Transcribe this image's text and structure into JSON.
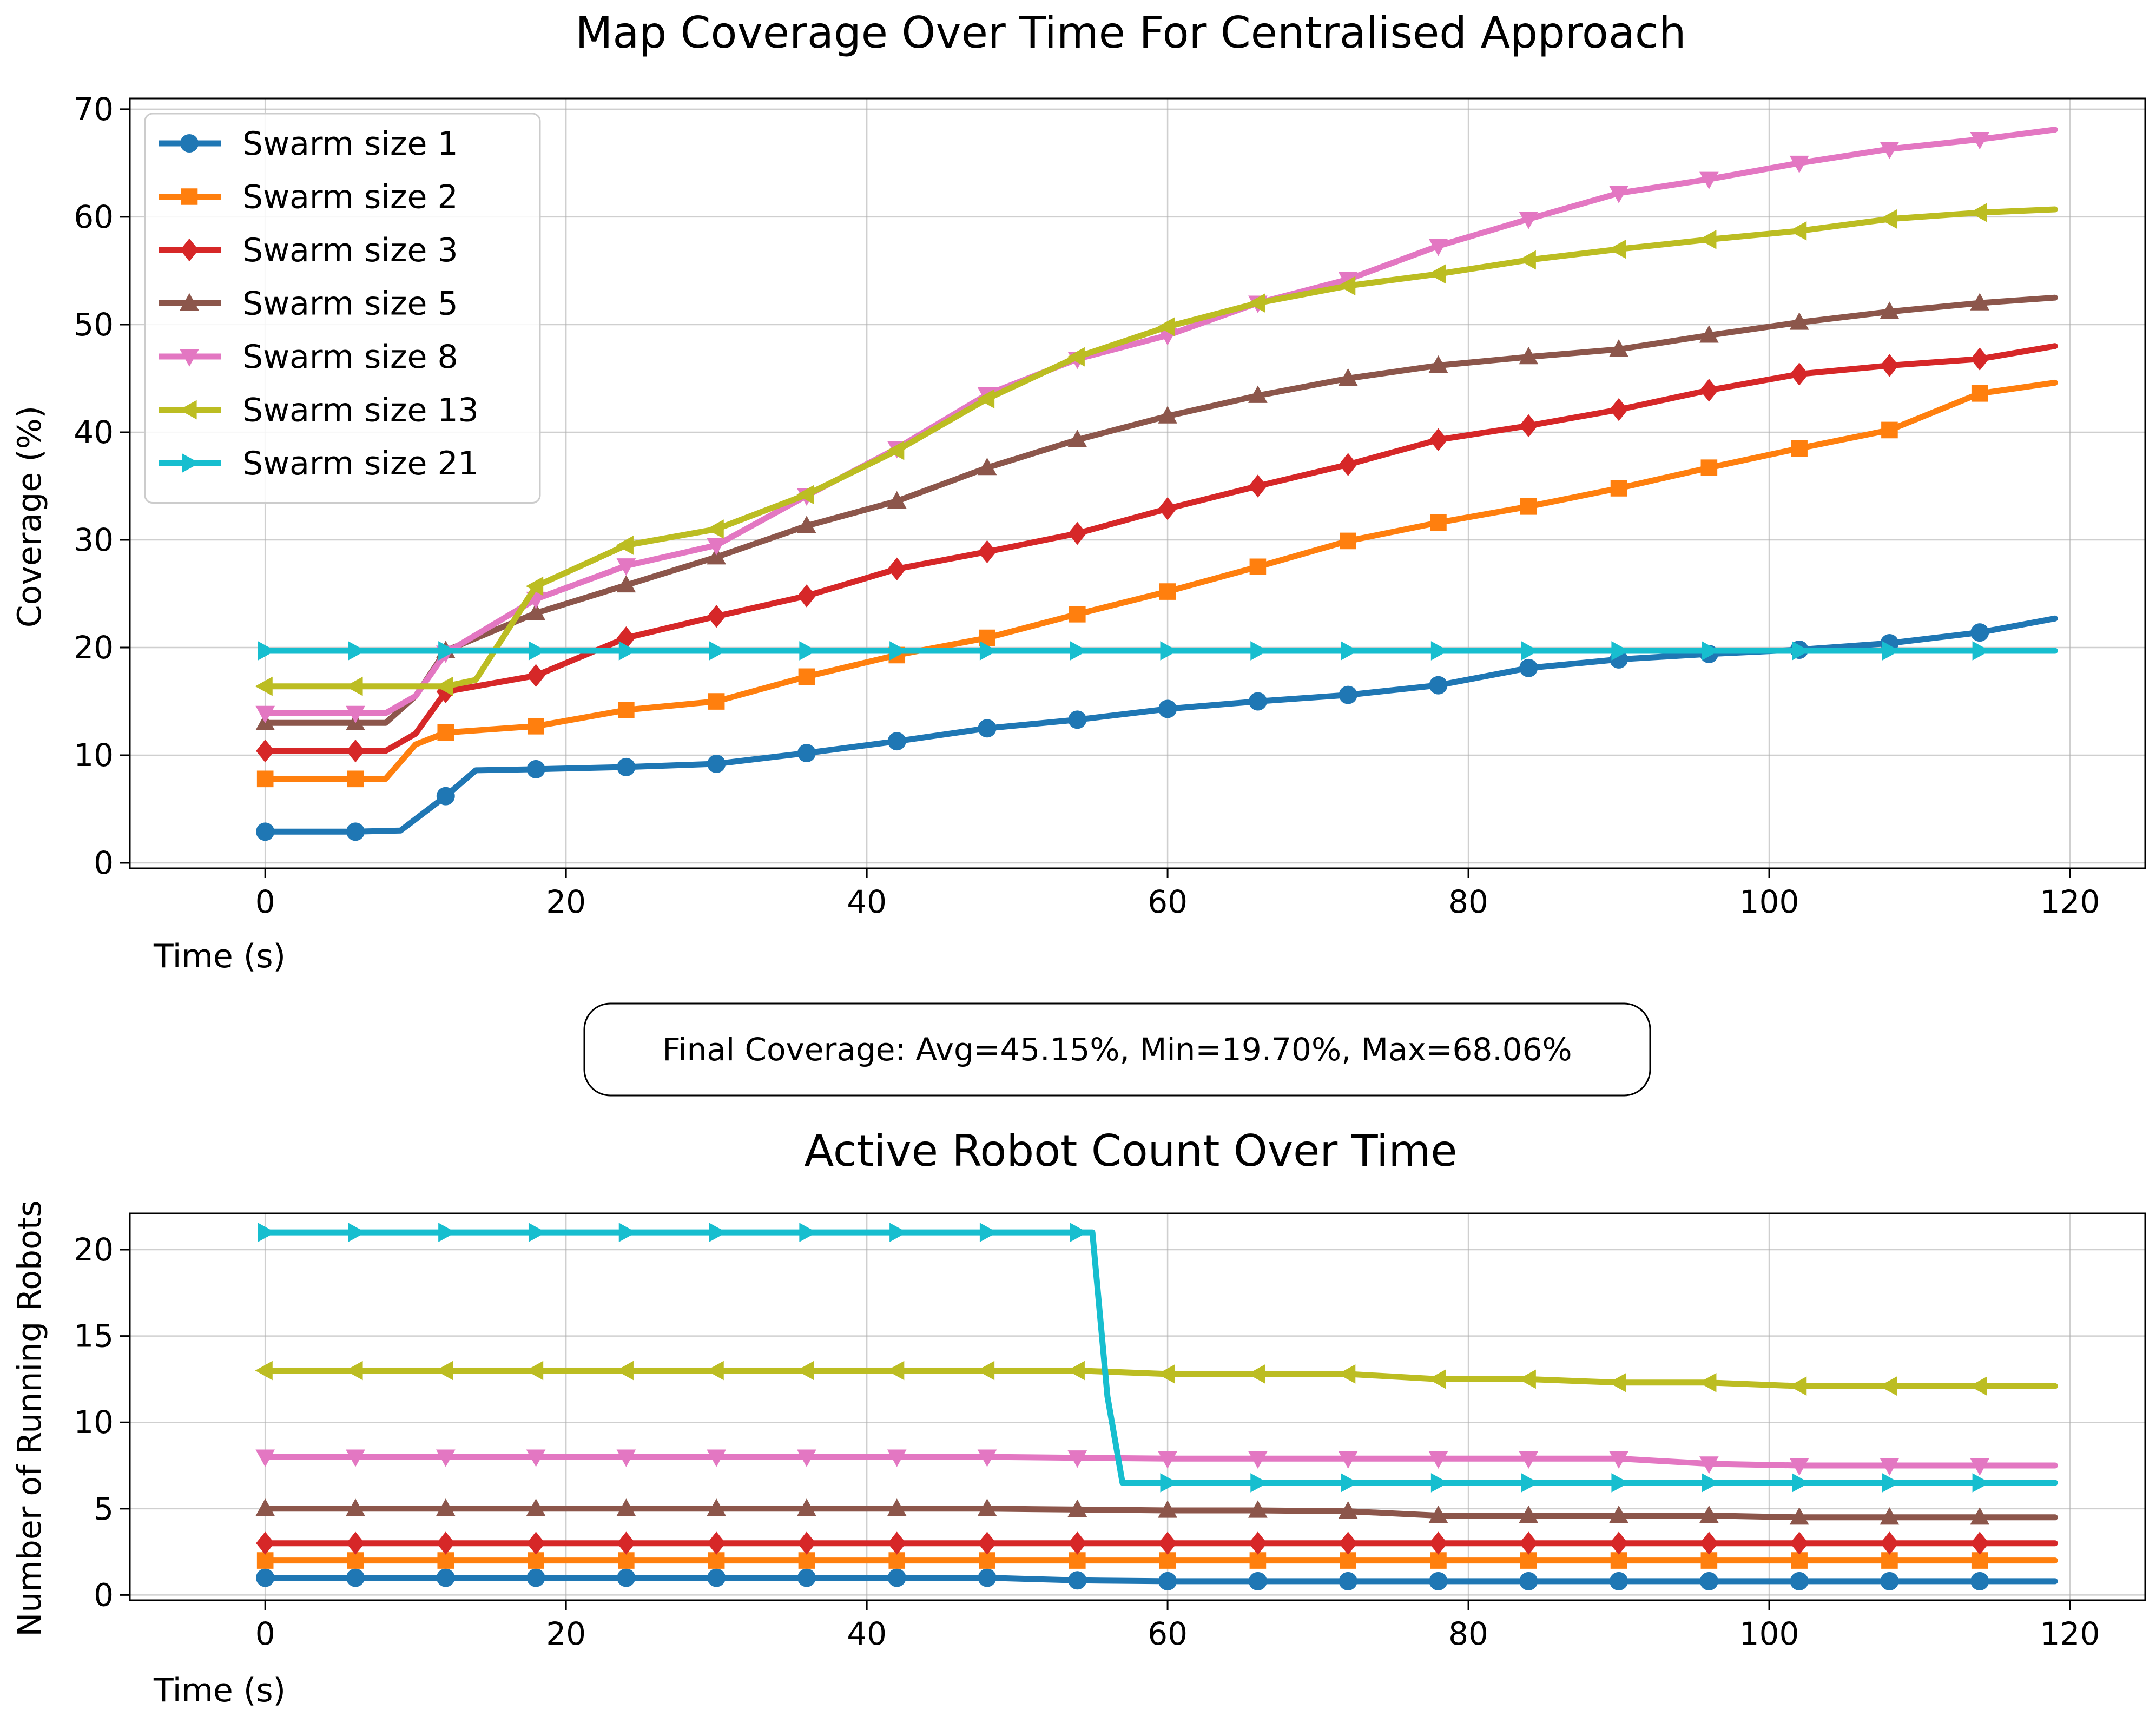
{
  "colors": {
    "Swarm size 1": "#1f77b4",
    "Swarm size 2": "#ff7f0e",
    "Swarm size 3": "#d62728",
    "Swarm size 5": "#8c564b",
    "Swarm size 8": "#e377c2",
    "Swarm size 13": "#bcbd22",
    "Swarm size 21": "#17becf"
  },
  "summary_box": "Final Coverage: Avg=45.15%, Min=19.70%, Max=68.06%",
  "chart_data": [
    {
      "type": "line",
      "title": "Map Coverage Over Time For Centralised Approach",
      "xlabel": "Time (s)",
      "ylabel": "Coverage (%)",
      "xlim": [
        -9,
        125
      ],
      "ylim": [
        -0.5,
        71
      ],
      "xticks": [
        "0",
        "20",
        "40",
        "60",
        "80",
        "100",
        "120"
      ],
      "yticks": [
        "0",
        "10",
        "20",
        "30",
        "40",
        "50",
        "60",
        "70"
      ],
      "grid": true,
      "legend": "upper left",
      "series": [
        {
          "name": "Swarm size 1",
          "marker": "circle",
          "x": [
            0,
            6,
            9,
            12,
            14,
            18,
            24,
            30,
            36,
            42,
            48,
            54,
            60,
            66,
            72,
            78,
            84,
            90,
            96,
            102,
            108,
            114,
            119
          ],
          "y": [
            2.9,
            2.9,
            3.0,
            6.2,
            8.6,
            8.7,
            8.9,
            9.2,
            10.2,
            11.3,
            12.5,
            13.3,
            14.3,
            15.0,
            15.6,
            16.5,
            18.1,
            18.9,
            19.4,
            19.8,
            20.4,
            21.4,
            22.7
          ]
        },
        {
          "name": "Swarm size 2",
          "marker": "square",
          "x": [
            0,
            6,
            8,
            10,
            12,
            18,
            24,
            30,
            36,
            42,
            48,
            54,
            60,
            66,
            72,
            78,
            84,
            90,
            96,
            102,
            108,
            114,
            119
          ],
          "y": [
            7.8,
            7.8,
            7.8,
            11.0,
            12.1,
            12.7,
            14.2,
            15.0,
            17.3,
            19.3,
            20.9,
            23.1,
            25.2,
            27.5,
            29.9,
            31.6,
            33.1,
            34.8,
            36.7,
            38.5,
            40.2,
            43.6,
            44.6
          ]
        },
        {
          "name": "Swarm size 3",
          "marker": "diamond",
          "x": [
            0,
            6,
            8,
            10,
            12,
            18,
            24,
            30,
            36,
            42,
            48,
            54,
            60,
            66,
            72,
            78,
            84,
            90,
            96,
            102,
            108,
            114,
            119
          ],
          "y": [
            10.4,
            10.4,
            10.4,
            12.0,
            15.9,
            17.4,
            20.9,
            22.9,
            24.8,
            27.3,
            28.9,
            30.6,
            32.9,
            35.0,
            37.0,
            39.3,
            40.6,
            42.1,
            43.9,
            45.4,
            46.2,
            46.8,
            48.0
          ]
        },
        {
          "name": "Swarm size 5",
          "marker": "triangle-up",
          "x": [
            0,
            6,
            8,
            10,
            12,
            18,
            24,
            30,
            36,
            42,
            48,
            54,
            60,
            66,
            72,
            78,
            84,
            90,
            96,
            102,
            108,
            114,
            119
          ],
          "y": [
            13.0,
            13.0,
            13.0,
            15.5,
            19.7,
            23.2,
            25.8,
            28.4,
            31.3,
            33.6,
            36.7,
            39.3,
            41.5,
            43.4,
            45.0,
            46.2,
            47.0,
            47.7,
            49.0,
            50.2,
            51.2,
            52.0,
            52.5
          ]
        },
        {
          "name": "Swarm size 8",
          "marker": "triangle-down",
          "x": [
            0,
            6,
            8,
            10,
            12,
            18,
            24,
            30,
            36,
            42,
            48,
            54,
            60,
            66,
            72,
            78,
            84,
            90,
            96,
            102,
            108,
            114,
            119
          ],
          "y": [
            13.9,
            13.9,
            13.9,
            15.5,
            19.5,
            24.5,
            27.6,
            29.5,
            34.1,
            38.5,
            43.5,
            46.8,
            49.0,
            52.0,
            54.2,
            57.3,
            59.8,
            62.2,
            63.5,
            65.0,
            66.3,
            67.2,
            68.1
          ]
        },
        {
          "name": "Swarm size 13",
          "marker": "triangle-left",
          "x": [
            0,
            6,
            10,
            12,
            14,
            18,
            24,
            30,
            36,
            42,
            48,
            54,
            60,
            66,
            72,
            78,
            84,
            90,
            96,
            102,
            108,
            114,
            119
          ],
          "y": [
            16.4,
            16.4,
            16.4,
            16.4,
            17.0,
            25.7,
            29.5,
            31.0,
            34.2,
            38.3,
            43.1,
            47.0,
            49.8,
            52.0,
            53.6,
            54.7,
            56.0,
            57.0,
            57.9,
            58.7,
            59.8,
            60.4,
            60.7
          ]
        },
        {
          "name": "Swarm size 21",
          "marker": "triangle-right",
          "x": [
            0,
            6,
            12,
            18,
            24,
            30,
            36,
            42,
            48,
            54,
            60,
            66,
            72,
            78,
            84,
            90,
            96,
            102,
            108,
            114,
            119
          ],
          "y": [
            19.7,
            19.7,
            19.7,
            19.7,
            19.7,
            19.7,
            19.7,
            19.7,
            19.7,
            19.7,
            19.7,
            19.7,
            19.7,
            19.7,
            19.7,
            19.7,
            19.7,
            19.7,
            19.7,
            19.7,
            19.7
          ]
        }
      ]
    },
    {
      "type": "line",
      "title": "Active Robot Count Over Time",
      "xlabel": "Time (s)",
      "ylabel": "Number of Running Robots",
      "xlim": [
        -9,
        125
      ],
      "ylim": [
        -0.3,
        22.1
      ],
      "xticks": [
        "0",
        "20",
        "40",
        "60",
        "80",
        "100",
        "120"
      ],
      "yticks": [
        "0",
        "5",
        "10",
        "15",
        "20"
      ],
      "grid": true,
      "series": [
        {
          "name": "Swarm size 1",
          "marker": "circle",
          "x": [
            0,
            6,
            12,
            18,
            24,
            30,
            36,
            42,
            48,
            54,
            60,
            66,
            72,
            78,
            84,
            90,
            96,
            102,
            108,
            114,
            119
          ],
          "y": [
            1,
            1,
            1,
            1,
            1,
            1,
            1,
            1,
            1,
            0.85,
            0.8,
            0.8,
            0.8,
            0.8,
            0.8,
            0.8,
            0.8,
            0.8,
            0.8,
            0.8,
            0.8
          ]
        },
        {
          "name": "Swarm size 2",
          "marker": "square",
          "x": [
            0,
            6,
            12,
            18,
            24,
            30,
            36,
            42,
            48,
            54,
            60,
            66,
            72,
            78,
            84,
            90,
            96,
            102,
            108,
            114,
            119
          ],
          "y": [
            2,
            2,
            2,
            2,
            2,
            2,
            2,
            2,
            2,
            2,
            2,
            2,
            2,
            2,
            2,
            2,
            2,
            2,
            2,
            2,
            2
          ]
        },
        {
          "name": "Swarm size 3",
          "marker": "diamond",
          "x": [
            0,
            6,
            12,
            18,
            24,
            30,
            36,
            42,
            48,
            54,
            60,
            66,
            72,
            78,
            84,
            90,
            96,
            102,
            108,
            114,
            119
          ],
          "y": [
            3,
            3,
            3,
            3,
            3,
            3,
            3,
            3,
            3,
            3,
            3,
            3,
            3,
            3,
            3,
            3,
            3,
            3,
            3,
            3,
            3
          ]
        },
        {
          "name": "Swarm size 5",
          "marker": "triangle-up",
          "x": [
            0,
            6,
            12,
            18,
            24,
            30,
            36,
            42,
            48,
            54,
            60,
            66,
            72,
            78,
            84,
            90,
            96,
            102,
            108,
            114,
            119
          ],
          "y": [
            5,
            5,
            5,
            5,
            5,
            5,
            5,
            5,
            5,
            4.95,
            4.9,
            4.9,
            4.85,
            4.6,
            4.6,
            4.6,
            4.6,
            4.5,
            4.5,
            4.5,
            4.5
          ]
        },
        {
          "name": "Swarm size 8",
          "marker": "triangle-down",
          "x": [
            0,
            6,
            12,
            18,
            24,
            30,
            36,
            42,
            48,
            54,
            60,
            66,
            72,
            78,
            84,
            90,
            96,
            102,
            108,
            114,
            119
          ],
          "y": [
            8,
            8,
            8,
            8,
            8,
            8,
            8,
            8,
            8,
            7.95,
            7.9,
            7.9,
            7.9,
            7.9,
            7.9,
            7.9,
            7.6,
            7.5,
            7.5,
            7.5,
            7.5
          ]
        },
        {
          "name": "Swarm size 13",
          "marker": "triangle-left",
          "x": [
            0,
            6,
            12,
            18,
            24,
            30,
            36,
            42,
            48,
            54,
            60,
            66,
            72,
            78,
            84,
            90,
            96,
            102,
            108,
            114,
            119
          ],
          "y": [
            13,
            13,
            13,
            13,
            13,
            13,
            13,
            13,
            13,
            13,
            12.8,
            12.8,
            12.8,
            12.5,
            12.5,
            12.3,
            12.3,
            12.1,
            12.1,
            12.1,
            12.1
          ]
        },
        {
          "name": "Swarm size 21",
          "marker": "triangle-right",
          "x": [
            0,
            6,
            12,
            18,
            24,
            30,
            36,
            42,
            48,
            54,
            55,
            56,
            57,
            60,
            66,
            72,
            78,
            84,
            90,
            96,
            102,
            108,
            114,
            119
          ],
          "y": [
            21,
            21,
            21,
            21,
            21,
            21,
            21,
            21,
            21,
            21,
            21,
            11.5,
            6.5,
            6.5,
            6.5,
            6.5,
            6.5,
            6.5,
            6.5,
            6.5,
            6.5,
            6.5,
            6.5,
            6.5
          ]
        }
      ]
    }
  ]
}
